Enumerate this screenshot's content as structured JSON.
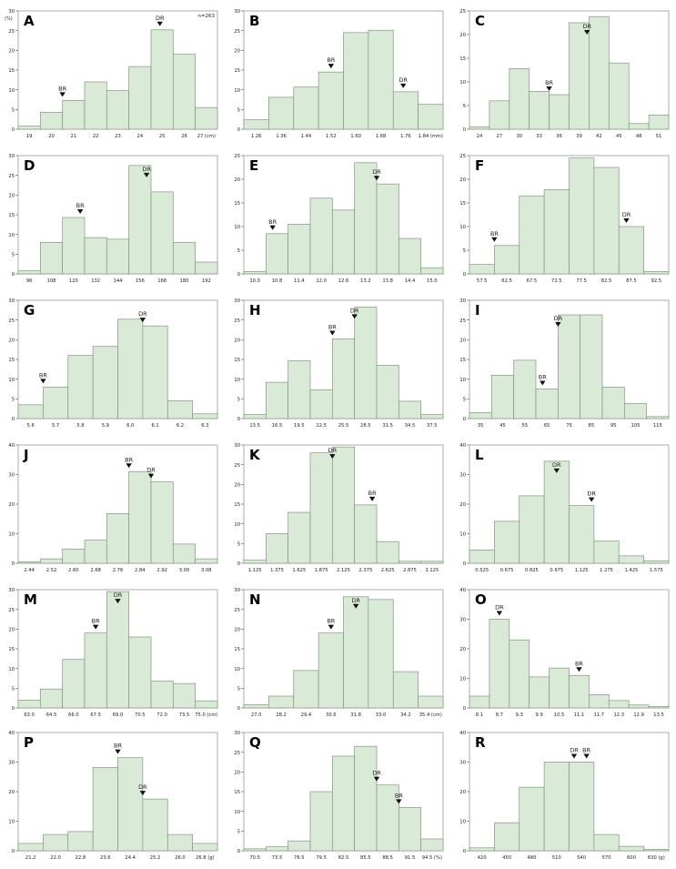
{
  "colors": {
    "bar_fill": "#d9ead6",
    "bar_stroke": "#7f9a7c",
    "axis": "#555555",
    "text": "#222222",
    "marker": "#111111"
  },
  "chart_data": [
    {
      "panel": "A",
      "type": "bar",
      "note": "n=263",
      "ylim": [
        0,
        30
      ],
      "yticks": [
        "0",
        "5",
        "10",
        "15",
        "20",
        "25",
        "30"
      ],
      "yunit": "(%)",
      "xticks": [
        "19",
        "20",
        "21",
        "22",
        "23",
        "24",
        "25",
        "26",
        "27 (cm)"
      ],
      "values": [
        0.8,
        4.3,
        7.3,
        12.0,
        9.8,
        15.9,
        25.2,
        19.0,
        5.5
      ],
      "markers": [
        {
          "label": "BR",
          "bin": 2.0
        },
        {
          "label": "DR",
          "bin": 6.4
        }
      ]
    },
    {
      "panel": "B",
      "type": "bar",
      "ylim": [
        0,
        30
      ],
      "yticks": [
        "0",
        "5",
        "10",
        "15",
        "20",
        "25",
        "30"
      ],
      "xticks": [
        "1.26",
        "1.36",
        "1.44",
        "1.52",
        "1.60",
        "1.68",
        "1.76",
        "1.84 (mm)"
      ],
      "values": [
        2.4,
        8.1,
        10.7,
        14.5,
        24.5,
        25.1,
        9.5,
        6.3
      ],
      "markers": [
        {
          "label": "BR",
          "bin": 3.5
        },
        {
          "label": "DR",
          "bin": 6.4
        }
      ]
    },
    {
      "panel": "C",
      "type": "bar",
      "ylim": [
        0,
        25
      ],
      "yticks": [
        "0",
        "5",
        "10",
        "15",
        "20",
        "25"
      ],
      "xticks": [
        "24",
        "27",
        "30",
        "33",
        "36",
        "39",
        "42",
        "45",
        "48",
        "51"
      ],
      "values": [
        0.5,
        6.0,
        12.8,
        8.0,
        7.3,
        22.5,
        23.8,
        14.0,
        1.2,
        3.0
      ],
      "markers": [
        {
          "label": "BR",
          "bin": 4.0
        },
        {
          "label": "DR",
          "bin": 5.9
        }
      ]
    },
    {
      "panel": "D",
      "type": "bar",
      "ylim": [
        0,
        30
      ],
      "yticks": [
        "0",
        "5",
        "10",
        "15",
        "20",
        "25",
        "30"
      ],
      "xticks": [
        "96",
        "108",
        "120",
        "132",
        "144",
        "156",
        "168",
        "180",
        "192"
      ],
      "values": [
        0.8,
        8.0,
        14.3,
        9.2,
        8.8,
        27.5,
        20.8,
        8.0,
        3.0
      ],
      "markers": [
        {
          "label": "BR",
          "bin": 2.8
        },
        {
          "label": "DR",
          "bin": 5.8
        }
      ]
    },
    {
      "panel": "E",
      "type": "bar",
      "ylim": [
        0,
        25
      ],
      "yticks": [
        "0",
        "5",
        "10",
        "15",
        "20",
        "25"
      ],
      "xticks": [
        "10.0",
        "10.8",
        "11.4",
        "12.0",
        "12.6",
        "13.2",
        "13.8",
        "14.4",
        "15.0"
      ],
      "values": [
        0.5,
        8.5,
        10.5,
        16.0,
        13.5,
        23.5,
        19.0,
        7.5,
        1.3
      ],
      "markers": [
        {
          "label": "BR",
          "bin": 1.3
        },
        {
          "label": "DR",
          "bin": 6.0
        }
      ]
    },
    {
      "panel": "F",
      "type": "bar",
      "ylim": [
        0,
        25
      ],
      "yticks": [
        "0",
        "5",
        "10",
        "15",
        "20",
        "25"
      ],
      "xticks": [
        "57.5",
        "62.5",
        "67.5",
        "72.5",
        "77.5",
        "82.5",
        "87.5",
        "92.5"
      ],
      "values": [
        2.0,
        6.0,
        16.5,
        17.8,
        24.5,
        22.5,
        10.0,
        0.5
      ],
      "markers": [
        {
          "label": "BR",
          "bin": 1.0
        },
        {
          "label": "DR",
          "bin": 6.3
        }
      ]
    },
    {
      "panel": "G",
      "type": "bar",
      "ylim": [
        0,
        30
      ],
      "yticks": [
        "0",
        "5",
        "10",
        "15",
        "20",
        "25",
        "30"
      ],
      "xticks": [
        "5.6",
        "5.7",
        "5.8",
        "5.9",
        "6.0",
        "6.1",
        "6.2",
        "6.3"
      ],
      "values": [
        3.5,
        8.0,
        16.0,
        18.3,
        25.2,
        23.5,
        4.5,
        1.2
      ],
      "markers": [
        {
          "label": "BR",
          "bin": 1.0
        },
        {
          "label": "DR",
          "bin": 5.0
        }
      ]
    },
    {
      "panel": "H",
      "type": "bar",
      "ylim": [
        0,
        30
      ],
      "yticks": [
        "0",
        "5",
        "10",
        "15",
        "20",
        "25",
        "30"
      ],
      "xticks": [
        "13.5",
        "16.5",
        "19.5",
        "22.5",
        "25.5",
        "28.5",
        "31.5",
        "34.5",
        "37.5"
      ],
      "values": [
        1.0,
        9.2,
        14.7,
        7.3,
        20.2,
        28.3,
        13.5,
        4.4,
        1.0
      ],
      "markers": [
        {
          "label": "BR",
          "bin": 4.0
        },
        {
          "label": "DR",
          "bin": 5.0
        }
      ]
    },
    {
      "panel": "I",
      "type": "bar",
      "ylim": [
        0,
        30
      ],
      "yticks": [
        "0",
        "5",
        "10",
        "15",
        "20",
        "25",
        "30"
      ],
      "xticks": [
        "35",
        "45",
        "55",
        "65",
        "75",
        "85",
        "95",
        "105",
        "115"
      ],
      "values": [
        1.5,
        11.0,
        14.8,
        7.5,
        26.3,
        26.3,
        8.0,
        3.8,
        0.5
      ],
      "markers": [
        {
          "label": "DR",
          "bin": 4.0
        },
        {
          "label": "BR",
          "bin": 3.3
        }
      ]
    },
    {
      "panel": "J",
      "type": "bar",
      "ylim": [
        0,
        40
      ],
      "yticks": [
        "0",
        "10",
        "20",
        "30",
        "40"
      ],
      "xticks": [
        "2.44",
        "2.52",
        "2.60",
        "2.68",
        "2.76",
        "2.84",
        "2.92",
        "3.00",
        "3.08"
      ],
      "values": [
        0.5,
        1.5,
        4.8,
        7.8,
        16.8,
        31.0,
        27.5,
        6.5,
        1.5
      ],
      "markers": [
        {
          "label": "BR",
          "bin": 5.0
        },
        {
          "label": "DR",
          "bin": 6.0
        }
      ]
    },
    {
      "panel": "K",
      "type": "bar",
      "ylim": [
        0,
        30
      ],
      "yticks": [
        "0",
        "5",
        "10",
        "15",
        "20",
        "25",
        "30"
      ],
      "xticks": [
        "1.125",
        "1.375",
        "1.625",
        "1.875",
        "2.125",
        "2.375",
        "2.625",
        "2.875",
        "3.125"
      ],
      "values": [
        0.8,
        7.5,
        12.9,
        28.0,
        29.5,
        14.8,
        5.5,
        0.5,
        0.5
      ],
      "markers": [
        {
          "label": "DR",
          "bin": 4.0
        },
        {
          "label": "BR",
          "bin": 5.8
        }
      ]
    },
    {
      "panel": "L",
      "type": "bar",
      "ylim": [
        0,
        40
      ],
      "yticks": [
        "0",
        "10",
        "20",
        "30",
        "40"
      ],
      "xticks": [
        "0.525",
        "0.675",
        "0.825",
        "0.975",
        "1.125",
        "1.275",
        "1.425",
        "1.575"
      ],
      "values": [
        4.5,
        14.2,
        22.8,
        34.5,
        19.5,
        7.5,
        2.5,
        0.8
      ],
      "markers": [
        {
          "label": "DR",
          "bin": 3.5
        },
        {
          "label": "DR",
          "bin": 4.9
        }
      ]
    },
    {
      "panel": "M",
      "type": "bar",
      "ylim": [
        0,
        30
      ],
      "yticks": [
        "0",
        "5",
        "10",
        "15",
        "20",
        "25",
        "30"
      ],
      "xticks": [
        "63.0",
        "64.5",
        "66.0",
        "67.5",
        "69.0",
        "70.5",
        "72.0",
        "73.5",
        "75.0 (cm)"
      ],
      "values": [
        2.0,
        4.8,
        12.3,
        19.0,
        29.5,
        18.0,
        6.8,
        6.2,
        1.8
      ],
      "markers": [
        {
          "label": "BR",
          "bin": 3.5
        },
        {
          "label": "DR",
          "bin": 4.5
        }
      ]
    },
    {
      "panel": "N",
      "type": "bar",
      "ylim": [
        0,
        30
      ],
      "yticks": [
        "0",
        "5",
        "10",
        "15",
        "20",
        "25",
        "30"
      ],
      "xticks": [
        "27.0",
        "28.2",
        "29.4",
        "30.6",
        "31.8",
        "33.0",
        "34.2",
        "35.4 (cm)"
      ],
      "values": [
        0.8,
        3.0,
        9.5,
        19.0,
        28.2,
        27.5,
        9.2,
        3.0
      ],
      "markers": [
        {
          "label": "BR",
          "bin": 3.5
        },
        {
          "label": "DR",
          "bin": 4.5
        }
      ]
    },
    {
      "panel": "O",
      "type": "bar",
      "ylim": [
        0,
        40
      ],
      "yticks": [
        "0",
        "10",
        "20",
        "30",
        "40"
      ],
      "xticks": [
        "8.1",
        "8.7",
        "9.3",
        "9.9",
        "10.5",
        "11.1",
        "11.7",
        "12.3",
        "12.9",
        "13.5"
      ],
      "values": [
        4.0,
        30.0,
        23.0,
        10.5,
        13.5,
        11.0,
        4.5,
        2.5,
        1.0,
        0.5
      ],
      "markers": [
        {
          "label": "DR",
          "bin": 1.5
        },
        {
          "label": "BR",
          "bin": 5.5
        }
      ]
    },
    {
      "panel": "P",
      "type": "bar",
      "ylim": [
        0,
        40
      ],
      "yticks": [
        "0",
        "10",
        "20",
        "30",
        "40"
      ],
      "xticks": [
        "21.2",
        "22.0",
        "22.8",
        "23.6",
        "24.4",
        "25.2",
        "26.0",
        "26.8 (g)"
      ],
      "values": [
        2.5,
        5.5,
        6.5,
        28.2,
        31.5,
        17.5,
        5.5,
        2.5
      ],
      "markers": [
        {
          "label": "BR",
          "bin": 4.0
        },
        {
          "label": "DR",
          "bin": 5.0
        }
      ]
    },
    {
      "panel": "Q",
      "type": "bar",
      "ylim": [
        0,
        30
      ],
      "yticks": [
        "0",
        "5",
        "10",
        "15",
        "20",
        "25",
        "30"
      ],
      "xticks": [
        "70.5",
        "73.5",
        "76.5",
        "79.5",
        "82.5",
        "85.5",
        "88.5",
        "91.5",
        "94.5 (%)"
      ],
      "values": [
        0.5,
        1.0,
        2.5,
        15.0,
        24.0,
        26.5,
        16.7,
        11.0,
        3.0
      ],
      "markers": [
        {
          "label": "DR",
          "bin": 6.0
        },
        {
          "label": "BR",
          "bin": 7.0
        }
      ]
    },
    {
      "panel": "R",
      "type": "bar",
      "ylim": [
        0,
        40
      ],
      "yticks": [
        "0",
        "10",
        "20",
        "30",
        "40"
      ],
      "xticks": [
        "420",
        "450",
        "480",
        "510",
        "540",
        "570",
        "600",
        "630 (g)"
      ],
      "values": [
        1.0,
        9.5,
        21.5,
        30.0,
        30.0,
        5.5,
        1.5,
        0.5
      ],
      "markers": [
        {
          "label": "DR",
          "bin": 4.2
        },
        {
          "label": "BR",
          "bin": 4.7
        }
      ]
    }
  ]
}
